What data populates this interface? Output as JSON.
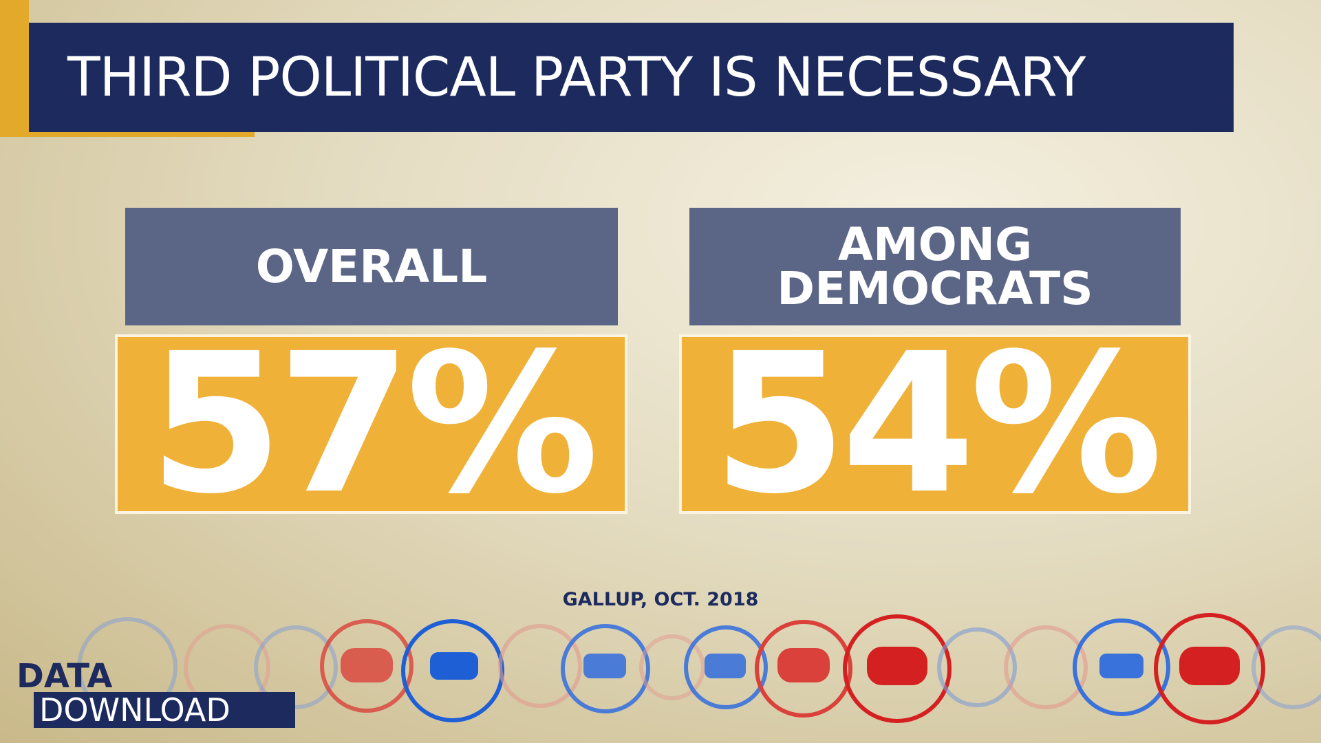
{
  "header": {
    "title": "THIRD POLITICAL PARTY IS NECESSARY"
  },
  "cards": [
    {
      "label": "OVERALL",
      "value": "57%"
    },
    {
      "label": "AMONG DEMOCRATS",
      "value": "54%"
    }
  ],
  "source": "GALLUP, OCT. 2018",
  "logo": {
    "line1": "DATA_",
    "line2": "DOWNLOAD"
  }
}
